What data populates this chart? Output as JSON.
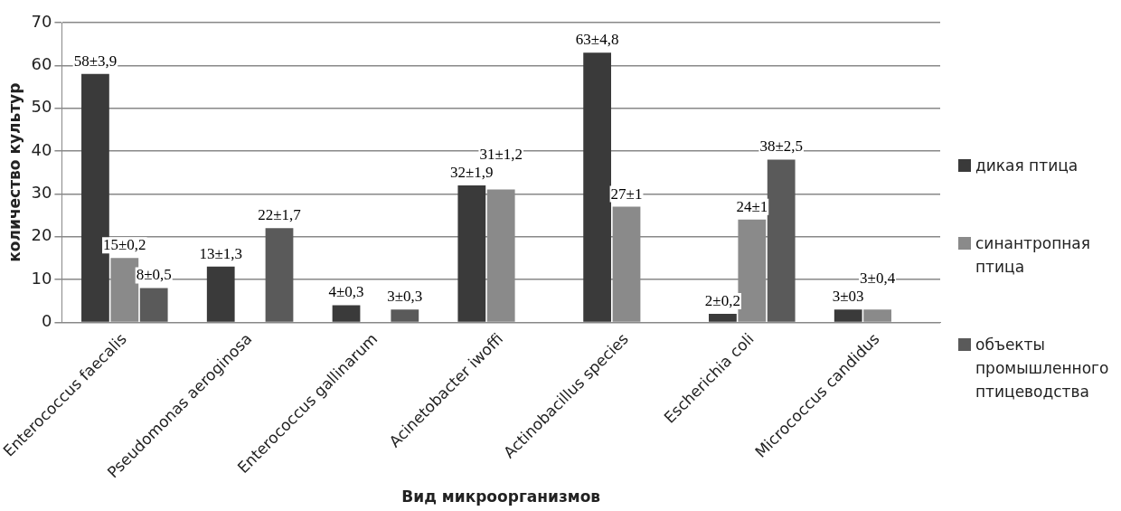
{
  "chart_data": {
    "type": "bar",
    "xlabel": "Вид микроорганизмов",
    "ylabel": "количество культур",
    "categories": [
      "Enterococcus faecalis",
      "Pseudomonas aeroginosa",
      "Enterococcus gallinarum",
      "Acinetobacter iwoffi",
      "Actinobacillus species",
      "Escherichia coli",
      "Micrococcus candidus"
    ],
    "series": [
      {
        "name": "дикая птица",
        "color": "#3a3a3a",
        "values": [
          58,
          13,
          4,
          32,
          63,
          2,
          3
        ],
        "value_labels": [
          "58±3,9",
          "13±1,3",
          "4±0,3",
          "32±1,9",
          "63±4,8",
          "2±0,2",
          "3±03"
        ]
      },
      {
        "name": "синантропная птица",
        "color": "#8a8a8a",
        "values": [
          15,
          null,
          null,
          31,
          27,
          24,
          3
        ],
        "value_labels": [
          "15±0,2",
          null,
          null,
          "31±1,2",
          "27±1",
          "24±1",
          "3±0,4"
        ]
      },
      {
        "name": "объекты промышленного птицеводства",
        "color": "#5a5a5a",
        "values": [
          8,
          22,
          3,
          null,
          null,
          38,
          null
        ],
        "value_labels": [
          "8±0,5",
          "22±1,7",
          "3±0,3",
          null,
          null,
          "38±2,5",
          null
        ]
      }
    ],
    "ylim": [
      0,
      70
    ],
    "yticks": [
      0,
      10,
      20,
      30,
      40,
      50,
      60,
      70
    ],
    "grid": "y",
    "legend": "right"
  }
}
